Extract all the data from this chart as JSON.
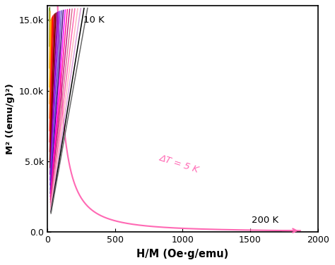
{
  "xlabel": "H/M (Oe·g/emu)",
  "ylabel": "M² ((emu/g)²)",
  "xlim": [
    0,
    2000
  ],
  "ylim": [
    0,
    16000
  ],
  "yticks": [
    0.0,
    5000,
    10000,
    15000
  ],
  "ytick_labels": [
    "0.0",
    "5.0k",
    "10.0k",
    "15.0k"
  ],
  "xticks": [
    0,
    500,
    1000,
    1500,
    2000
  ],
  "T_start": 10,
  "T_end": 200,
  "dT": 5,
  "annotation_dT": "ΔT = 5 K",
  "annotation_10K": "10 K",
  "annotation_200K": "200 K",
  "arrow_color": "#FF69B4",
  "guide_color": "#FF69B4",
  "background_color": "#ffffff",
  "spine_color": "#000000",
  "colors": [
    "#00008B",
    "#0000CD",
    "#0000FF",
    "#4169E1",
    "#1E90FF",
    "#00BFFF",
    "#00CED1",
    "#008B8B",
    "#006400",
    "#228B22",
    "#32CD32",
    "#7CFC00",
    "#ADFF2F",
    "#808000",
    "#9ACD32",
    "#6B8E23",
    "#DAA520",
    "#FFD700",
    "#FFA500",
    "#FF8C00",
    "#FF4500",
    "#FF0000",
    "#DC143C",
    "#8B0000",
    "#800000",
    "#8B008B",
    "#9400D3",
    "#8A2BE2",
    "#6A5ACD",
    "#4B0082",
    "#FF00FF",
    "#FF1493",
    "#C71585",
    "#DB7093",
    "#FF69B4",
    "#FFB6C1",
    "#DDA0DD",
    "#000000",
    "#696969"
  ]
}
